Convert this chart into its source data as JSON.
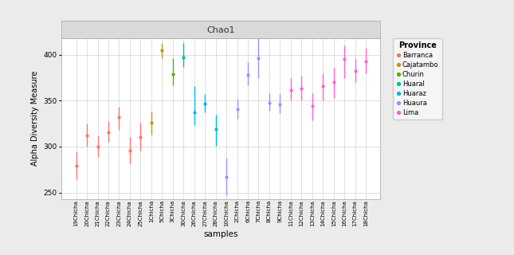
{
  "title": "Chao1",
  "xlabel": "samples",
  "ylabel": "Alpha Diversity Measure",
  "ylim": [
    243,
    418
  ],
  "yticks": [
    250,
    300,
    350,
    400
  ],
  "background_color": "#ebebeb",
  "plot_bg_color": "#ffffff",
  "grid_color": "#d9d9d9",
  "title_bg": "#d9d9d9",
  "provinces": {
    "Barranca": {
      "color": "#F8766D"
    },
    "Cajatambo": {
      "color": "#C49A00"
    },
    "Churin": {
      "color": "#53B400"
    },
    "Huaral": {
      "color": "#00C094"
    },
    "Huaraz": {
      "color": "#00B6EB"
    },
    "Huaura": {
      "color": "#A58AFF"
    },
    "Lima": {
      "color": "#FB61D7"
    }
  },
  "samples": [
    {
      "name": "19Chicha",
      "province": "Barranca",
      "mean": 279,
      "low": 264,
      "high": 295
    },
    {
      "name": "20Chicha",
      "province": "Barranca",
      "mean": 312,
      "low": 300,
      "high": 325
    },
    {
      "name": "21Chicha",
      "province": "Barranca",
      "mean": 300,
      "low": 289,
      "high": 312
    },
    {
      "name": "22Chicha",
      "province": "Barranca",
      "mean": 316,
      "low": 305,
      "high": 328
    },
    {
      "name": "23Chicha",
      "province": "Barranca",
      "mean": 332,
      "low": 318,
      "high": 343
    },
    {
      "name": "24Chicha",
      "province": "Barranca",
      "mean": 296,
      "low": 282,
      "high": 310
    },
    {
      "name": "25Chicha",
      "province": "Barranca",
      "mean": 310,
      "low": 296,
      "high": 326
    },
    {
      "name": "1Chicha",
      "province": "Cajatambo",
      "mean": 326,
      "low": 313,
      "high": 338
    },
    {
      "name": "5Chicha",
      "province": "Cajatambo",
      "mean": 405,
      "low": 396,
      "high": 413
    },
    {
      "name": "3Chicha",
      "province": "Churin",
      "mean": 379,
      "low": 367,
      "high": 396
    },
    {
      "name": "30Chicha",
      "province": "Huaral",
      "mean": 397,
      "low": 387,
      "high": 413
    },
    {
      "name": "26Chicha",
      "province": "Huaraz",
      "mean": 337,
      "low": 323,
      "high": 366
    },
    {
      "name": "27Chicha",
      "province": "Huaraz",
      "mean": 347,
      "low": 337,
      "high": 357
    },
    {
      "name": "28Chicha",
      "province": "Huaraz",
      "mean": 319,
      "low": 301,
      "high": 335
    },
    {
      "name": "10Chicha",
      "province": "Huaura",
      "mean": 267,
      "low": 247,
      "high": 288
    },
    {
      "name": "2Chicha",
      "province": "Huaura",
      "mean": 341,
      "low": 330,
      "high": 352
    },
    {
      "name": "6Chicha",
      "province": "Huaura",
      "mean": 378,
      "low": 367,
      "high": 392
    },
    {
      "name": "7Chicha",
      "province": "Huaura",
      "mean": 396,
      "low": 375,
      "high": 423
    },
    {
      "name": "8Chicha",
      "province": "Huaura",
      "mean": 348,
      "low": 339,
      "high": 358
    },
    {
      "name": "9Chicha",
      "province": "Huaura",
      "mean": 346,
      "low": 336,
      "high": 357
    },
    {
      "name": "11Chicha",
      "province": "Lima",
      "mean": 362,
      "low": 350,
      "high": 375
    },
    {
      "name": "12Chicha",
      "province": "Lima",
      "mean": 363,
      "low": 350,
      "high": 377
    },
    {
      "name": "13Chicha",
      "province": "Lima",
      "mean": 344,
      "low": 329,
      "high": 358
    },
    {
      "name": "14Chicha",
      "province": "Lima",
      "mean": 366,
      "low": 350,
      "high": 380
    },
    {
      "name": "15Chicha",
      "province": "Lima",
      "mean": 370,
      "low": 353,
      "high": 386
    },
    {
      "name": "16Chicha",
      "province": "Lima",
      "mean": 395,
      "low": 375,
      "high": 410
    },
    {
      "name": "17Chicha",
      "province": "Lima",
      "mean": 382,
      "low": 370,
      "high": 395
    },
    {
      "name": "18Chicha",
      "province": "Lima",
      "mean": 393,
      "low": 380,
      "high": 408
    }
  ]
}
